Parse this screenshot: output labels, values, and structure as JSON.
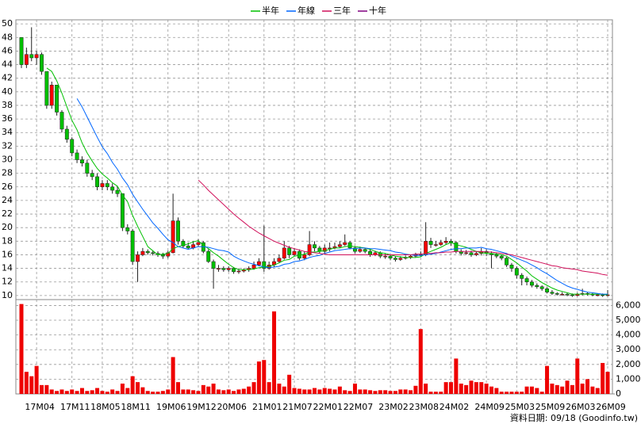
{
  "chart_data": {
    "type": "candlestick",
    "legend": "top",
    "grid": true,
    "footnote": "資料日期: 09/18 (Goodinfo.tw)",
    "up_color": "#ff0000",
    "down_color": "#00c000",
    "categories": [
      null,
      null,
      null,
      "17M04",
      null,
      null,
      null,
      null,
      null,
      null,
      "17M11",
      null,
      null,
      null,
      null,
      null,
      "18M05",
      null,
      null,
      null,
      null,
      null,
      "18M11",
      null,
      null,
      null,
      null,
      null,
      null,
      "19M06",
      null,
      null,
      null,
      null,
      null,
      "19M12",
      null,
      null,
      null,
      null,
      null,
      "20M06",
      null,
      null,
      null,
      null,
      null,
      null,
      "21M01",
      null,
      null,
      null,
      null,
      null,
      "21M07",
      null,
      null,
      null,
      null,
      null,
      "22M01",
      null,
      null,
      null,
      null,
      null,
      "22M07",
      null,
      null,
      null,
      null,
      null,
      null,
      "23M02",
      null,
      null,
      null,
      null,
      null,
      "23M08",
      null,
      null,
      null,
      null,
      null,
      "24M02",
      null,
      null,
      null,
      null,
      null,
      null,
      "24M09",
      null,
      null,
      null,
      null,
      null,
      "25M03",
      null,
      null,
      null,
      null,
      null,
      "25M09",
      null,
      null,
      null,
      null,
      null,
      "26M03",
      null,
      null,
      null,
      null,
      null,
      "26M09"
    ],
    "open": [
      48,
      44,
      45.5,
      45,
      45.5,
      43,
      38,
      41,
      37,
      34.5,
      33,
      31,
      30,
      29.5,
      28,
      27.5,
      26,
      26.5,
      26,
      25.5,
      25,
      20,
      19.5,
      15,
      16,
      16.5,
      16.3,
      16.2,
      16,
      15.8,
      16.3,
      21,
      18,
      17.3,
      17,
      17.5,
      17.8,
      16.5,
      15,
      14,
      14,
      13.8,
      14,
      13.5,
      13.6,
      13.8,
      14,
      14.5,
      15,
      14,
      14.5,
      15,
      15.5,
      17,
      16,
      16.5,
      15.5,
      16,
      17.5,
      17,
      16.5,
      17,
      17,
      17.2,
      17.5,
      17.8,
      17,
      16.5,
      16.8,
      16.5,
      16,
      16.3,
      15.8,
      15.8,
      15.5,
      15.3,
      15.5,
      15.6,
      15.8,
      16,
      16,
      18,
      17.5,
      17.5,
      17.8,
      18,
      17.8,
      16.5,
      16.2,
      16.3,
      16,
      16.2,
      16.5,
      16.2,
      16,
      15.8,
      15.5,
      14.5,
      14,
      13,
      12.5,
      12,
      11.5,
      11.3,
      11,
      10.5,
      10.3,
      10.2,
      10.2,
      10.1,
      10,
      10.2,
      10.3,
      10.2,
      10.1,
      10.1,
      10
    ],
    "high": [
      48,
      46.5,
      49.5,
      46,
      45.8,
      43,
      41.5,
      41,
      37.3,
      35,
      33.3,
      31.5,
      30.5,
      30,
      28.5,
      28,
      27,
      27,
      26.5,
      26,
      25,
      20.5,
      19.8,
      16.5,
      17,
      16.8,
      16.6,
      16.5,
      16.3,
      16.6,
      25,
      21.5,
      18.3,
      17.8,
      18,
      18.3,
      18,
      16.8,
      15.3,
      14.5,
      14.3,
      14.3,
      14.2,
      14,
      14,
      14.3,
      15,
      15.5,
      20.3,
      15,
      15.5,
      16,
      18,
      17.3,
      17,
      16.8,
      16.5,
      19.5,
      18,
      17.3,
      17.5,
      17.8,
      17.8,
      18,
      19,
      18,
      17.3,
      17.2,
      17,
      16.8,
      16.6,
      16.5,
      16.2,
      16,
      15.8,
      15.8,
      15.9,
      16,
      16.3,
      16.5,
      20.8,
      18.5,
      18,
      18.2,
      18.6,
      18.3,
      18,
      16.8,
      16.7,
      16.6,
      16.5,
      17,
      16.8,
      16.5,
      16.3,
      16,
      15.7,
      14.8,
      14.3,
      13.3,
      12.8,
      12.3,
      11.8,
      11.5,
      11.2,
      10.8,
      10.5,
      10.5,
      10.4,
      10.3,
      10.4,
      11,
      10.5,
      10.4,
      10.3,
      10.3,
      10.8
    ],
    "low": [
      43.5,
      43.5,
      44.5,
      44,
      42.5,
      37.5,
      37.5,
      36.5,
      34,
      32.5,
      30.5,
      29.5,
      29,
      27.5,
      27,
      25.5,
      25.5,
      25.5,
      25,
      24.5,
      19.5,
      19,
      14.5,
      12,
      15.8,
      16,
      15.9,
      15.7,
      15.4,
      15.5,
      16.2,
      17.5,
      17,
      16.8,
      16.8,
      17.2,
      16.2,
      14.8,
      11,
      13.5,
      13.5,
      13.5,
      13.2,
      13.2,
      13.4,
      13.5,
      13.8,
      14.3,
      13.5,
      13.8,
      14.2,
      14.8,
      15.3,
      15.5,
      15.8,
      15.2,
      15.2,
      15.8,
      16.5,
      16.2,
      16.2,
      16.5,
      16.8,
      17,
      17.3,
      16.8,
      16.2,
      16.3,
      16.2,
      15.7,
      15.8,
      15.5,
      15.4,
      15.2,
      15,
      15.1,
      15.3,
      15.4,
      15.6,
      15.7,
      15.8,
      17,
      17.2,
      17.3,
      17.5,
      17.3,
      16.2,
      15.9,
      16,
      15.7,
      15.8,
      15.9,
      15.8,
      14,
      15.5,
      15.2,
      14.2,
      13.5,
      12.5,
      11.5,
      11.5,
      11.2,
      11,
      10.7,
      10.3,
      10.1,
      10,
      10,
      9.9,
      9.8,
      9.9,
      10,
      10,
      9.9,
      9.9,
      9.8,
      9.9
    ],
    "close": [
      44,
      45.5,
      45,
      45.5,
      43,
      38,
      41,
      37,
      34.5,
      33,
      31,
      30,
      29.5,
      28,
      27.5,
      26,
      26.5,
      26,
      25.5,
      25,
      20,
      19.5,
      15,
      16,
      16.5,
      16.3,
      16.2,
      16,
      15.8,
      16.3,
      21,
      18,
      17.3,
      17,
      17.5,
      17.8,
      16.5,
      15,
      14,
      14,
      13.8,
      14,
      13.5,
      13.6,
      13.8,
      14,
      14.5,
      15,
      14,
      14.5,
      15,
      15.5,
      17,
      16,
      16.5,
      15.5,
      16,
      17.5,
      17,
      16.5,
      17,
      17,
      17.2,
      17.5,
      17.8,
      17,
      16.5,
      16.8,
      16.5,
      16,
      16.3,
      15.8,
      15.8,
      15.5,
      15.3,
      15.5,
      15.6,
      15.8,
      16,
      16,
      18,
      17.5,
      17.5,
      17.8,
      18,
      17.8,
      16.5,
      16.2,
      16.3,
      16,
      16.2,
      16.5,
      16.2,
      16,
      15.8,
      15.5,
      14.5,
      14,
      13,
      12.5,
      12,
      11.5,
      11.3,
      11,
      10.5,
      10.3,
      10.2,
      10.2,
      10.1,
      10,
      10.2,
      10.3,
      10.2,
      10.1,
      10.1,
      10,
      10.1
    ],
    "volume": {
      "color": "#ee0000",
      "axis": "y2",
      "values": [
        6100,
        1500,
        1200,
        1900,
        600,
        600,
        300,
        200,
        300,
        200,
        300,
        200,
        400,
        200,
        250,
        400,
        200,
        150,
        300,
        200,
        700,
        400,
        1200,
        800,
        450,
        200,
        150,
        150,
        200,
        300,
        2500,
        800,
        300,
        300,
        250,
        200,
        600,
        500,
        700,
        300,
        250,
        300,
        200,
        300,
        350,
        500,
        800,
        2200,
        2300,
        800,
        5600,
        700,
        500,
        1300,
        400,
        350,
        300,
        300,
        400,
        300,
        400,
        350,
        300,
        500,
        250,
        200,
        700,
        300,
        300,
        250,
        200,
        250,
        250,
        200,
        200,
        300,
        300,
        250,
        550,
        4400,
        700,
        150,
        150,
        150,
        800,
        800,
        2400,
        700,
        600,
        900,
        800,
        800,
        700,
        500,
        400,
        150,
        150,
        150,
        150,
        150,
        500,
        500,
        400,
        150,
        1900,
        700,
        600,
        500,
        900,
        600,
        2400,
        700,
        1000,
        500,
        400,
        2100,
        1500
      ]
    },
    "series": [
      {
        "name": "半年",
        "color": "#00c000",
        "values": [
          null,
          null,
          null,
          null,
          null,
          43.5,
          43,
          41.6,
          39.8,
          37.8,
          35.8,
          34.4,
          32.5,
          31,
          29.8,
          28.7,
          27.9,
          27.3,
          26.6,
          26.1,
          24.8,
          23.8,
          21.8,
          20.2,
          18.7,
          17.2,
          16.6,
          16,
          16.1,
          16.2,
          16.9,
          17.2,
          17.4,
          17.6,
          17.9,
          18.1,
          17.4,
          16.9,
          16.3,
          15.8,
          15.2,
          14.6,
          14.1,
          13.8,
          13.8,
          13.8,
          13.9,
          14.1,
          14.2,
          14.3,
          14.5,
          14.8,
          15.2,
          15.3,
          15.8,
          15.9,
          16.1,
          16.4,
          16.4,
          16.5,
          16.6,
          16.8,
          17,
          17,
          17.2,
          17.3,
          17.2,
          17.1,
          17,
          16.8,
          16.5,
          16.3,
          16.2,
          16,
          15.8,
          15.7,
          15.6,
          15.6,
          15.6,
          15.7,
          16.2,
          16.5,
          16.8,
          17.1,
          17.5,
          17.8,
          17.5,
          17.3,
          17.1,
          16.8,
          16.5,
          16.3,
          16.2,
          16.2,
          16.1,
          16,
          15.8,
          15.3,
          14.8,
          14.2,
          13.6,
          12.9,
          12.4,
          11.9,
          11.5,
          11.1,
          10.8,
          10.6,
          10.4,
          10.2,
          10.2,
          10.2,
          10.2,
          10.2,
          10.2,
          10.2,
          10.1
        ]
      },
      {
        "name": "年線",
        "color": "#0066ff",
        "values": [
          null,
          null,
          null,
          null,
          null,
          null,
          null,
          null,
          null,
          null,
          null,
          39,
          37.8,
          36.3,
          34.8,
          33.3,
          31.9,
          30.9,
          29.6,
          28.6,
          27.3,
          26.3,
          24.9,
          23.8,
          22.7,
          21.7,
          20.7,
          19.9,
          19,
          18.2,
          17.8,
          17.2,
          17,
          16.8,
          17,
          17.2,
          17.2,
          17.1,
          16.9,
          16.7,
          16.6,
          16.4,
          15.8,
          15.4,
          15.1,
          14.8,
          14.6,
          14.4,
          14.2,
          14.1,
          14.2,
          14.3,
          14.6,
          14.7,
          15,
          15.1,
          15.3,
          15.6,
          15.8,
          15.9,
          16.2,
          16.4,
          16.6,
          16.7,
          16.8,
          16.9,
          16.9,
          17,
          17,
          16.9,
          16.9,
          16.8,
          16.7,
          16.6,
          16.4,
          16.3,
          16.1,
          16,
          15.9,
          15.9,
          16,
          16.1,
          16.2,
          16.4,
          16.6,
          16.8,
          16.9,
          16.9,
          17,
          17,
          17,
          17.1,
          16.9,
          16.8,
          16.6,
          16.4,
          16.2,
          15.8,
          15.5,
          15.2,
          14.9,
          14.5,
          14.1,
          13.6,
          13.2,
          12.7,
          12.2,
          11.8,
          11.4,
          11.1,
          10.9,
          10.7,
          10.5,
          10.4,
          10.3,
          10.2,
          10.2
        ]
      },
      {
        "name": "三年",
        "color": "#d0105a",
        "values": [
          null,
          null,
          null,
          null,
          null,
          null,
          null,
          null,
          null,
          null,
          null,
          null,
          null,
          null,
          null,
          null,
          null,
          null,
          null,
          null,
          null,
          null,
          null,
          null,
          null,
          null,
          null,
          null,
          null,
          null,
          null,
          null,
          null,
          null,
          null,
          27,
          26.3,
          25.5,
          24.8,
          24.1,
          23.4,
          22.7,
          22,
          21.4,
          20.8,
          20.2,
          19.7,
          19.2,
          18.8,
          18.4,
          18,
          17.7,
          17.4,
          17.1,
          16.9,
          16.7,
          16.5,
          16.4,
          16.3,
          16.2,
          16.1,
          16,
          16,
          16,
          16,
          16,
          16,
          16,
          16,
          16,
          16,
          16,
          16,
          16,
          16,
          16,
          16,
          16,
          16.1,
          16.1,
          16.2,
          16.2,
          16.3,
          16.3,
          16.4,
          16.4,
          16.5,
          16.5,
          16.5,
          16.5,
          16.5,
          16.5,
          16.4,
          16.4,
          16.3,
          16.2,
          16.1,
          16,
          15.8,
          15.6,
          15.4,
          15.2,
          15,
          14.8,
          14.6,
          14.4,
          14.3,
          14.1,
          14,
          13.9,
          13.8,
          13.6,
          13.5,
          13.4,
          13.3,
          13.1,
          13
        ]
      },
      {
        "name": "十年",
        "color": "#800080",
        "values": [
          null,
          null,
          null,
          null,
          null,
          null,
          null,
          null,
          null,
          null,
          null,
          null,
          null,
          null,
          null,
          null,
          null,
          null,
          null,
          null,
          null,
          null,
          null,
          null,
          null,
          null,
          null,
          null,
          null,
          null,
          null,
          null,
          null,
          null,
          null,
          null,
          null,
          null,
          null,
          null,
          null,
          null,
          null,
          null,
          null,
          null,
          null,
          null,
          null,
          null,
          null,
          null,
          null,
          null,
          null,
          null,
          null,
          null,
          null,
          null,
          null,
          null,
          null,
          null,
          null,
          null,
          null,
          null,
          null,
          null,
          null,
          null,
          null,
          null,
          null,
          null,
          null,
          null,
          null,
          null,
          null,
          null,
          null,
          null,
          null,
          null,
          null,
          null,
          null,
          null,
          null,
          null,
          null,
          null,
          null,
          null,
          null,
          null,
          null,
          null,
          null,
          null,
          null,
          null,
          null,
          null,
          null,
          null,
          null,
          null,
          null,
          null,
          null,
          null,
          null,
          null,
          null
        ]
      }
    ],
    "ylim": [
      9.4,
      50.6
    ],
    "yticks": [
      10,
      12,
      14,
      16,
      18,
      20,
      22,
      24,
      26,
      28,
      30,
      32,
      34,
      36,
      38,
      40,
      42,
      44,
      46,
      48,
      50
    ],
    "y2lim": [
      0,
      6400
    ],
    "y2ticks": [
      0,
      {
        "value": 1000,
        "label": "1,000"
      },
      {
        "value": 2000,
        "label": "2,000"
      },
      {
        "value": 3000,
        "label": "3,000"
      },
      {
        "value": 4000,
        "label": "4,000"
      },
      {
        "value": 5000,
        "label": "5,000"
      },
      {
        "value": 6000,
        "label": "6,000"
      }
    ]
  }
}
